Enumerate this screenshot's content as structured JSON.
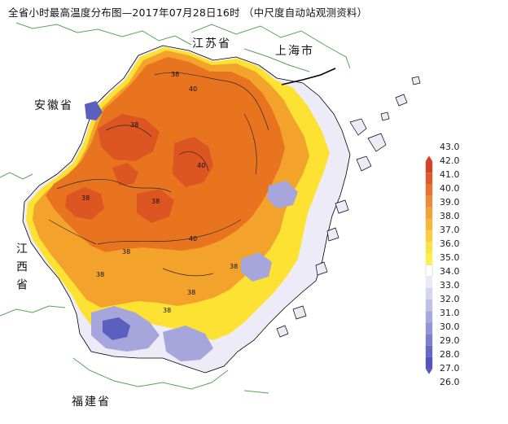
{
  "title": {
    "main": "全省小时最高温度分布图—2017年07月28日16时",
    "source": "（中尺度自动站观测资料）"
  },
  "regions": [
    {
      "id": "jiangsu",
      "label": "江苏省"
    },
    {
      "id": "shanghai",
      "label": "上海市"
    },
    {
      "id": "anhui",
      "label": "安徽省"
    },
    {
      "id": "jiangxi",
      "label": "江西省"
    },
    {
      "id": "fujian",
      "label": "福建省"
    }
  ],
  "legend": {
    "unit_values": [
      "43.0",
      "42.0",
      "41.0",
      "40.0",
      "39.0",
      "38.0",
      "37.0",
      "36.0",
      "35.0",
      "34.0",
      "33.0",
      "32.0",
      "31.0",
      "30.0",
      "29.0",
      "28.0",
      "27.0",
      "26.0"
    ],
    "colors": [
      "#d6402a",
      "#e0582c",
      "#e77233",
      "#ec8a37",
      "#f1a23a",
      "#f6b83c",
      "#f9cd3f",
      "#fbe142",
      "#fdf04a",
      "#ffffff",
      "#e9e9f7",
      "#d4d5ef",
      "#bec0e8",
      "#a7a9de",
      "#9194d6",
      "#7b7ecd",
      "#6669c4",
      "#5255bb"
    ],
    "scale_max": 43.0,
    "scale_min": 26.0
  },
  "map_labels": [
    {
      "value": "38"
    },
    {
      "value": "40"
    },
    {
      "value": "38"
    },
    {
      "value": "40"
    },
    {
      "value": "38"
    },
    {
      "value": "38"
    },
    {
      "value": "38"
    },
    {
      "value": "40"
    },
    {
      "value": "38"
    },
    {
      "value": "38"
    },
    {
      "value": "38"
    },
    {
      "value": "38"
    }
  ],
  "colors": {
    "hot": "#e8741f",
    "very_hot": "#dc5522",
    "warm": "#f3a22b",
    "mild": "#fde233",
    "cool": "#ecebf7",
    "cold": "#a6a6dd",
    "coldest": "#5b5fbe",
    "border_green": "#5aa15a",
    "coast_dark": "#000000"
  }
}
